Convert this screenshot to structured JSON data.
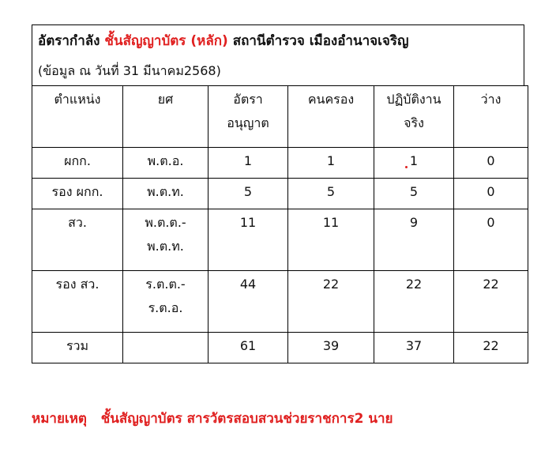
{
  "title": {
    "part1": "อัตรากำลัง ",
    "highlight": "ชั้นสัญญาบัตร (หลัก)",
    "part2": " สถานีตำรวจ เมืองอำนาจเจริญ"
  },
  "subtitle": "(ข้อมูล ณ วันที่ 31 มีนาคม2568)",
  "headers": [
    [
      "ตำแหน่ง",
      ""
    ],
    [
      "ยศ",
      ""
    ],
    [
      "อัตรา",
      "อนุญาต"
    ],
    [
      "คนครอง",
      ""
    ],
    [
      "ปฏิบัติงาน",
      "จริง"
    ],
    [
      "ว่าง",
      ""
    ]
  ],
  "rows": [
    {
      "position": "ผกก.",
      "rank": [
        "พ.ต.อ.",
        ""
      ],
      "allowed": "1",
      "held": "1",
      "actual": "1",
      "vacant": "0"
    },
    {
      "position": "รอง ผกก.",
      "rank": [
        "พ.ต.ท.",
        ""
      ],
      "allowed": "5",
      "held": "5",
      "actual": "5",
      "vacant": "0"
    },
    {
      "position": "สว.",
      "rank": [
        "พ.ต.ต.-",
        "พ.ต.ท."
      ],
      "allowed": "11",
      "held": "11",
      "actual": "9",
      "vacant": "0"
    },
    {
      "position": "รอง สว.",
      "rank": [
        "ร.ต.ต.-",
        "ร.ต.อ."
      ],
      "allowed": "44",
      "held": "22",
      "actual": "22",
      "vacant": "22"
    },
    {
      "position": "รวม",
      "rank": [
        "",
        ""
      ],
      "allowed": "61",
      "held": "39",
      "actual": "37",
      "vacant": "22"
    }
  ],
  "note": {
    "label": "หมายเหตุ",
    "text": "ชั้นสัญญาบัตร สารวัตรสอบสวนช่วยราชการ2 นาย"
  },
  "colors": {
    "accent": "#e02020"
  }
}
